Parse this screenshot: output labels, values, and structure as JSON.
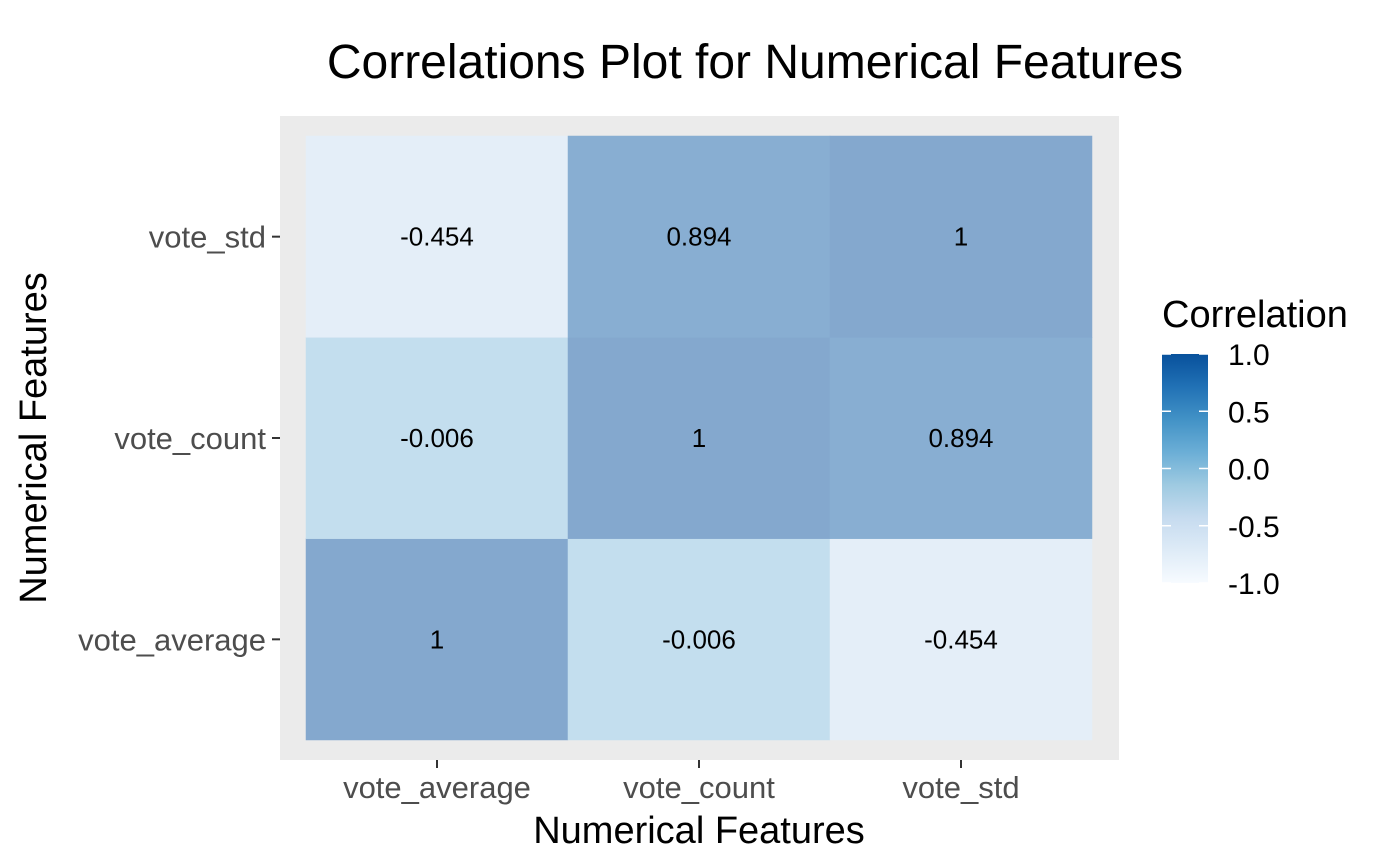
{
  "chart_data": {
    "type": "heatmap",
    "title": "Correlations Plot for Numerical Features",
    "xlabel": "Numerical Features",
    "ylabel": "Numerical Features",
    "x_categories": [
      "vote_average",
      "vote_count",
      "vote_std"
    ],
    "y_categories": [
      "vote_average",
      "vote_count",
      "vote_std"
    ],
    "values": [
      [
        1,
        -0.006,
        -0.454
      ],
      [
        -0.006,
        1,
        0.894
      ],
      [
        -0.454,
        0.894,
        1
      ]
    ],
    "value_labels": [
      [
        "1",
        "-0.006",
        "-0.454"
      ],
      [
        "-0.006",
        "1",
        "0.894"
      ],
      [
        "-0.454",
        "0.894",
        "1"
      ]
    ],
    "legend": {
      "title": "Correlation",
      "range": [
        -1,
        1
      ],
      "breaks": [
        "1.0",
        "0.5",
        "0.0",
        "-0.5",
        "-1.0"
      ],
      "break_values": [
        1.0,
        0.5,
        0.0,
        -0.5,
        -1.0
      ],
      "placement": "right"
    },
    "colors": {
      "scale": [
        "#f7fbff",
        "#deebf7",
        "#c6dbef",
        "#9ecae1",
        "#6baed6",
        "#4292c6",
        "#2171b5",
        "#08519c"
      ],
      "panel_background": "#ebebeb",
      "tile_alpha": 0.5
    },
    "grid": false
  }
}
